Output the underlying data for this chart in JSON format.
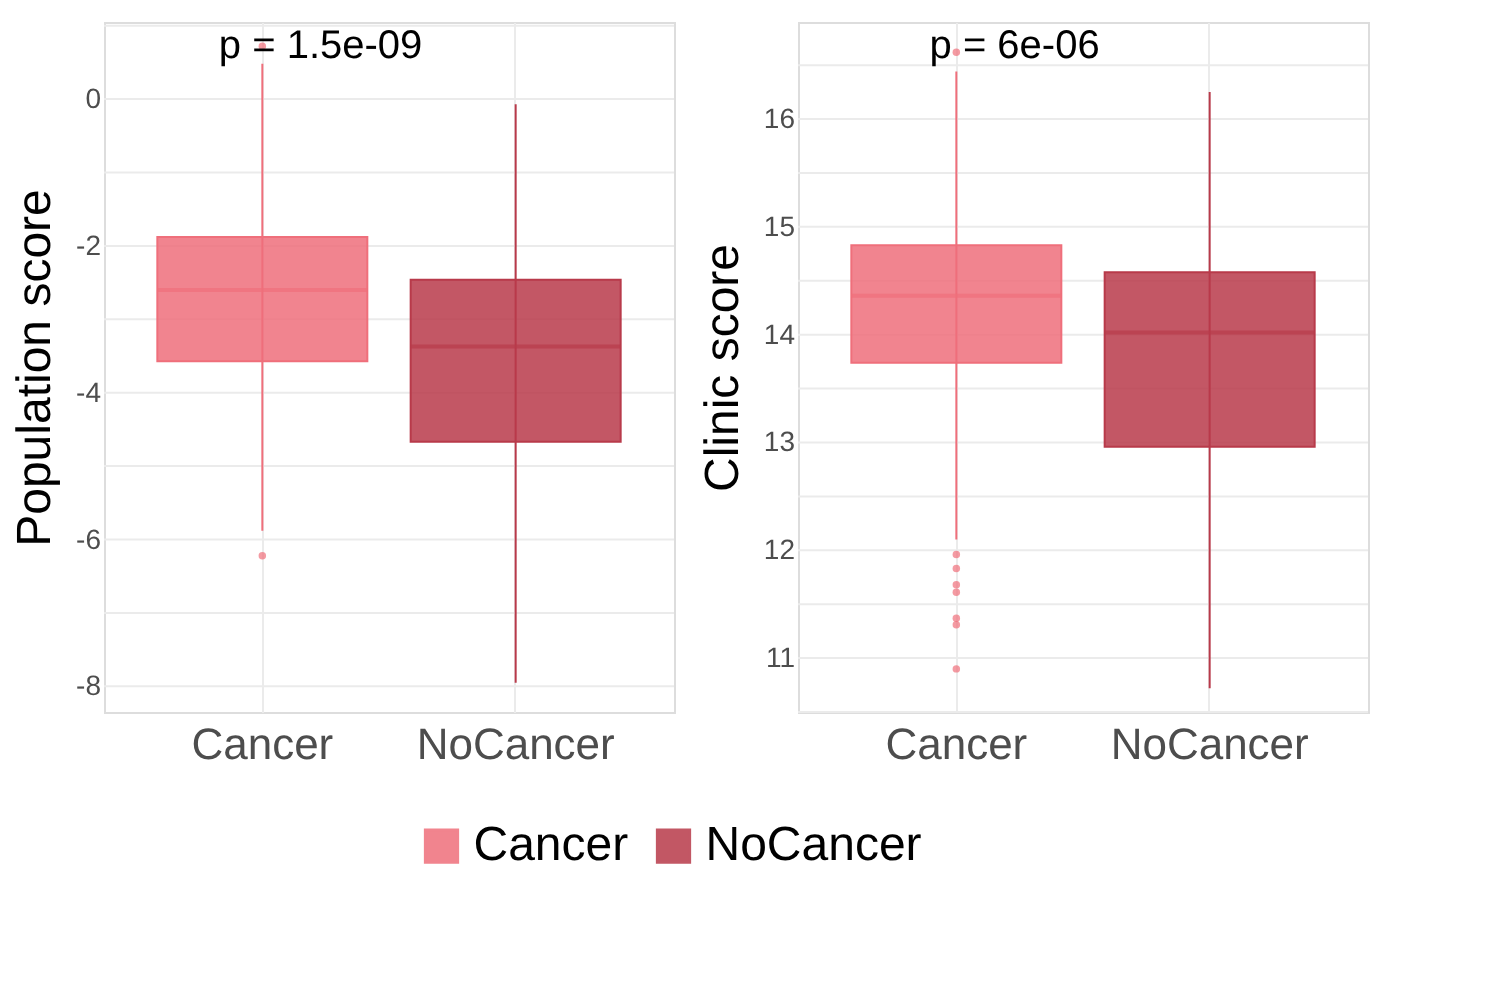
{
  "chart_data": [
    {
      "type": "box",
      "categories": [
        "Cancer",
        "NoCancer"
      ],
      "ylabel": "Population score",
      "legend": "bottom",
      "grid": true,
      "series": [
        {
          "name": "Cancer",
          "color": "#ef6f7b",
          "boxes": [
            {
              "low": -5.88,
              "q1": -3.57,
              "median": -2.6,
              "q3": -1.88,
              "high": 0.48,
              "outliers": [
                0.72,
                -6.22
              ]
            },
            null
          ]
        },
        {
          "name": "NoCancer",
          "color": "#b83a4a",
          "boxes": [
            null,
            {
              "low": -7.95,
              "q1": -4.67,
              "median": -3.37,
              "q3": -2.46,
              "high": -0.07
            }
          ]
        }
      ],
      "ylim": [
        -8.35,
        1.05
      ],
      "yticks": [
        -8,
        {
          "value": -7,
          "label": null
        },
        -6,
        {
          "value": -5,
          "label": null
        },
        -4,
        {
          "value": -3,
          "label": null
        },
        -2,
        {
          "value": -1,
          "label": null
        },
        0,
        {
          "value": 1,
          "label": null
        }
      ],
      "annotations": [
        "p = 1.5e-09"
      ]
    },
    {
      "type": "box",
      "categories": [
        "Cancer",
        "NoCancer"
      ],
      "ylabel": "Clinic score",
      "grid": true,
      "series": [
        {
          "name": "Cancer",
          "color": "#ef6f7b",
          "boxes": [
            {
              "low": 12.1,
              "q1": 13.74,
              "median": 14.36,
              "q3": 14.83,
              "high": 16.44,
              "outliers": [
                16.62,
                11.96,
                11.83,
                11.68,
                11.61,
                11.37,
                11.31,
                10.9
              ]
            },
            null
          ]
        },
        {
          "name": "NoCancer",
          "color": "#b83a4a",
          "boxes": [
            null,
            {
              "low": 10.72,
              "q1": 12.96,
              "median": 14.02,
              "q3": 14.58,
              "high": 16.25
            }
          ]
        }
      ],
      "ylim": [
        10.5,
        16.9
      ],
      "yticks": [
        {
          "value": 10.5,
          "label": null
        },
        11,
        {
          "value": 11.5,
          "label": null
        },
        12,
        {
          "value": 12.5,
          "label": null
        },
        13,
        {
          "value": 13.5,
          "label": null
        },
        14,
        {
          "value": 14.5,
          "label": null
        },
        15,
        {
          "value": 15.5,
          "label": null
        },
        16,
        {
          "value": 16.5,
          "label": null
        }
      ],
      "annotations": [
        "p = 6e-06"
      ]
    }
  ]
}
